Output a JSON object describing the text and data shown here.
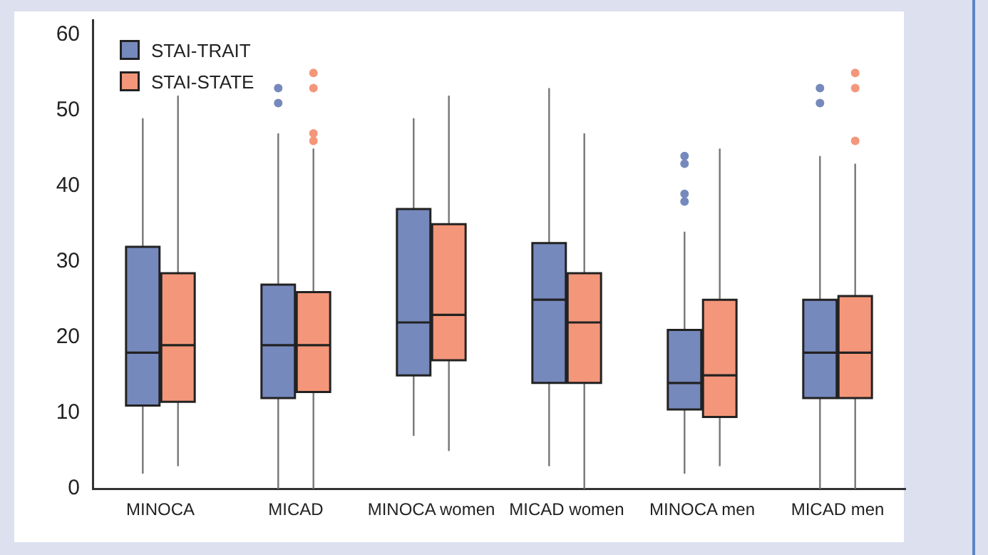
{
  "chart_data": {
    "type": "box",
    "categories": [
      "MINOCA",
      "MICAD",
      "MINOCA women",
      "MICAD women",
      "MINOCA men",
      "MICAD men"
    ],
    "ylim": [
      0,
      62
    ],
    "yticks": [
      0,
      10,
      20,
      30,
      40,
      50,
      60
    ],
    "grid": false,
    "legend": "top left",
    "series": [
      {
        "name": "STAI-TRAIT",
        "color": "#7689bd",
        "boxes": [
          {
            "low": 2,
            "q1": 11,
            "median": 18,
            "q3": 32,
            "high": 49
          },
          {
            "low": 0,
            "q1": 12,
            "median": 19,
            "q3": 27,
            "high": 47,
            "outliers": [
              51,
              53
            ]
          },
          {
            "low": 7,
            "q1": 15,
            "median": 22,
            "q3": 37,
            "high": 49
          },
          {
            "low": 3,
            "q1": 14,
            "median": 25,
            "q3": 32.5,
            "high": 53
          },
          {
            "low": 2,
            "q1": 10.5,
            "median": 14,
            "q3": 21,
            "high": 34,
            "outliers": [
              38,
              39,
              43,
              44
            ]
          },
          {
            "low": 0,
            "q1": 12,
            "median": 18,
            "q3": 25,
            "high": 44,
            "outliers": [
              51,
              53
            ]
          }
        ]
      },
      {
        "name": "STAI-STATE",
        "color": "#f4967a",
        "boxes": [
          {
            "low": 3,
            "q1": 11.5,
            "median": 19,
            "q3": 28.5,
            "high": 52
          },
          {
            "low": 0,
            "q1": 12.8,
            "median": 19,
            "q3": 26,
            "high": 45,
            "outliers": [
              46,
              47,
              53,
              55
            ]
          },
          {
            "low": 5,
            "q1": 17,
            "median": 23,
            "q3": 35,
            "high": 52
          },
          {
            "low": 0,
            "q1": 14,
            "median": 22,
            "q3": 28.5,
            "high": 47
          },
          {
            "low": 3,
            "q1": 9.5,
            "median": 15,
            "q3": 25,
            "high": 45
          },
          {
            "low": 0,
            "q1": 12,
            "median": 18,
            "q3": 25.5,
            "high": 43,
            "outliers": [
              46,
              53,
              55
            ]
          }
        ]
      }
    ]
  }
}
